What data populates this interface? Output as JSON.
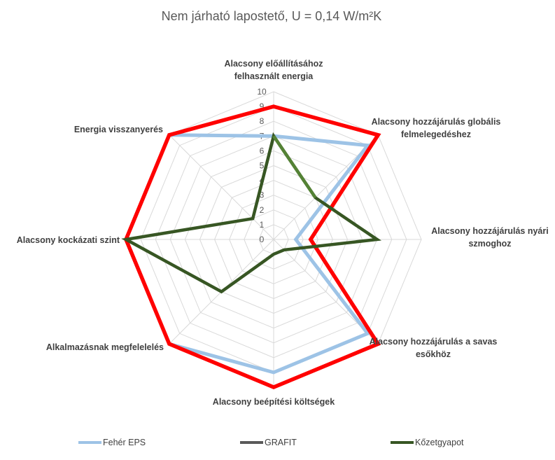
{
  "chart_data": {
    "type": "radar",
    "title": "Nem járható lapostető, U = 0,14 W/m²K",
    "axes": [
      "Alacsony előállításához felhasznált energia",
      "Alacsony hozzájárulás globális felmelegedéshez",
      "Alacsony hozzájárulás nyári szmoghoz",
      "Alacsony hozzájárulás a savas esőkhöz",
      "Alacsony beépítési költségek",
      "Alkalmazásnak megfelelelés",
      "Alacsony kockázati szint",
      "Energia visszanyerés"
    ],
    "axis_label_lines": [
      [
        "Alacsony előállításához",
        "felhasznált energia"
      ],
      [
        "Alacsony hozzájárulás globális",
        "felmelegedéshez"
      ],
      [
        "Alacsony hozzájárulás nyári",
        "szmoghoz"
      ],
      [
        "Alacsony hozzájárulás a savas",
        "esőkhöz"
      ],
      [
        "Alacsony beépítési költségek"
      ],
      [
        "Alkalmazásnak megfelelelés"
      ],
      [
        "Alacsony kockázati szint"
      ],
      [
        "Energia visszanyerés"
      ]
    ],
    "range": [
      0,
      10
    ],
    "ticks": [
      "0",
      "1",
      "2",
      "3",
      "4",
      "5",
      "6",
      "7",
      "8",
      "9",
      "10"
    ],
    "grid": true,
    "legend_position": "bottom",
    "series": [
      {
        "name": "Fehér EPS",
        "color": "#9DC3E6",
        "values": [
          7,
          9,
          1.5,
          9,
          9,
          10,
          10,
          10
        ]
      },
      {
        "name": "GRAFIT",
        "color": "#FF0000",
        "values": [
          9,
          10,
          2.5,
          10,
          10,
          10,
          10,
          10
        ]
      },
      {
        "name": "Kőzetgyapot",
        "color": "#375623",
        "values": [
          7,
          4,
          7,
          1,
          1,
          5,
          10,
          2
        ]
      }
    ],
    "legend_line_colors": [
      "#9DC3E6",
      "#595959",
      "#375623"
    ]
  }
}
